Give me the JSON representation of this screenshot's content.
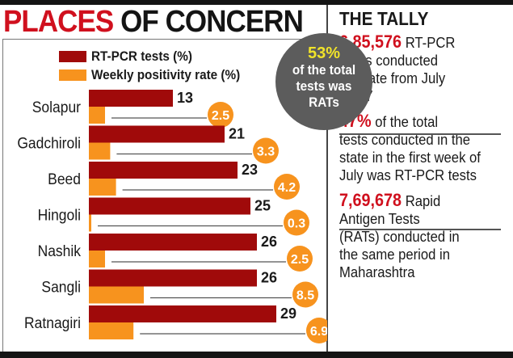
{
  "header": {
    "title_red": "PLACES",
    "title_black": "OF CONCERN"
  },
  "legend": [
    {
      "label": "RT-PCR tests (%)",
      "color": "#a00a0a"
    },
    {
      "label": "Weekly positivity rate (%)",
      "color": "#f7931e"
    }
  ],
  "callout": {
    "percent": "53%",
    "lines": [
      "of the total",
      "tests was",
      "RATs"
    ]
  },
  "chart_data": {
    "type": "bar",
    "orientation": "horizontal",
    "title": "PLACES OF CONCERN",
    "categories": [
      "Solapur",
      "Gadchiroli",
      "Beed",
      "Hingoli",
      "Nashik",
      "Sangli",
      "Ratnagiri"
    ],
    "series": [
      {
        "name": "RT-PCR tests (%)",
        "color": "#a00a0a",
        "values": [
          13,
          21,
          23,
          25,
          26,
          26,
          29
        ]
      },
      {
        "name": "Weekly positivity rate (%)",
        "color": "#f7931e",
        "values": [
          2.5,
          3.3,
          4.2,
          0.3,
          2.5,
          8.5,
          6.9
        ]
      }
    ],
    "xlabel": "",
    "ylabel": "",
    "grid": false,
    "legend_position": "top-left"
  },
  "tally": {
    "title": "THE TALLY",
    "items": [
      {
        "highlight": "6,85,576",
        "lines": [
          "RT-PCR",
          "tests conducted",
          "in state from July",
          "1 to 7"
        ]
      },
      {
        "highlight": "47%",
        "lines": [
          "of the total",
          "tests conducted in the",
          "state in the first week of",
          "July was RT-PCR tests"
        ]
      },
      {
        "highlight": "7,69,678",
        "lines": [
          "Rapid",
          "Antigen Tests",
          "(RATs) conducted in",
          "the same period in",
          "Maharashtra"
        ]
      }
    ]
  }
}
